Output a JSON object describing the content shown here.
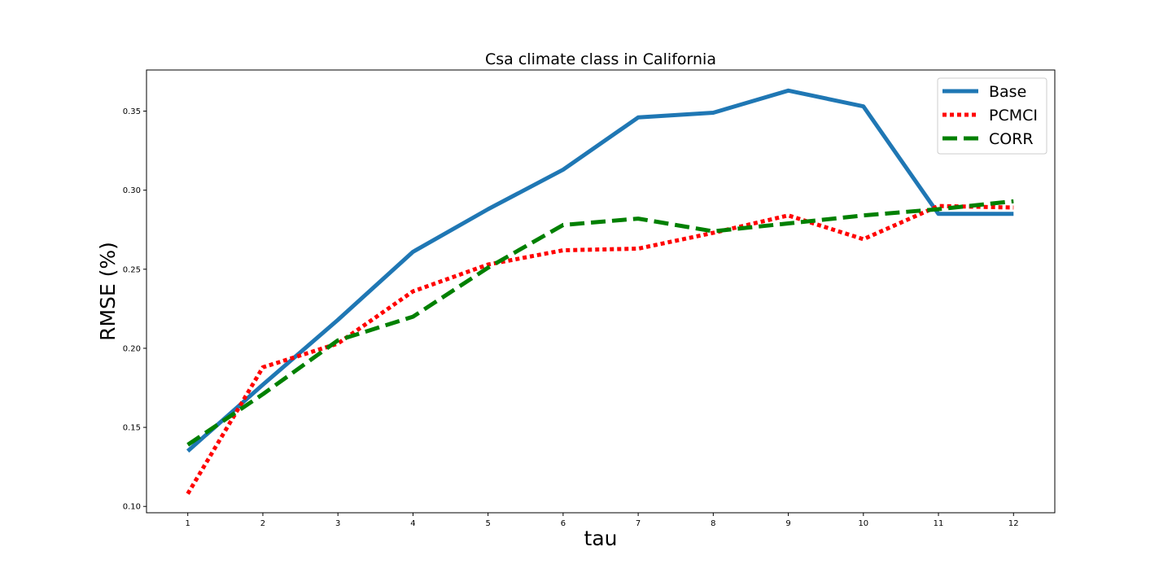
{
  "chart_data": {
    "type": "line",
    "title": "Csa climate class in California",
    "xlabel": "tau",
    "ylabel": "RMSE (%)",
    "x": [
      1,
      2,
      3,
      4,
      5,
      6,
      7,
      8,
      9,
      10,
      11,
      12
    ],
    "xlim": [
      0.45,
      12.55
    ],
    "ylim": [
      0.096,
      0.376
    ],
    "xticks": [
      1,
      2,
      3,
      4,
      5,
      6,
      7,
      8,
      9,
      10,
      11,
      12
    ],
    "yticks": [
      0.1,
      0.15,
      0.2,
      0.25,
      0.3,
      0.35
    ],
    "ytick_labels": [
      "0.10",
      "0.15",
      "0.20",
      "0.25",
      "0.30",
      "0.35"
    ],
    "grid": false,
    "legend_position": "top-right",
    "series": [
      {
        "name": "Base",
        "style": "solid",
        "color": "#1f77b4",
        "values": [
          0.135,
          0.177,
          0.218,
          0.261,
          0.288,
          0.313,
          0.346,
          0.349,
          0.363,
          0.353,
          0.285,
          0.285
        ]
      },
      {
        "name": "PCMCI",
        "style": "dotted",
        "color": "#ff0000",
        "values": [
          0.108,
          0.188,
          0.203,
          0.236,
          0.253,
          0.262,
          0.263,
          0.273,
          0.284,
          0.269,
          0.29,
          0.289
        ]
      },
      {
        "name": "CORR",
        "style": "dashed",
        "color": "#008000",
        "values": [
          0.139,
          0.171,
          0.205,
          0.22,
          0.251,
          0.278,
          0.282,
          0.274,
          0.279,
          0.284,
          0.288,
          0.293
        ]
      }
    ]
  }
}
